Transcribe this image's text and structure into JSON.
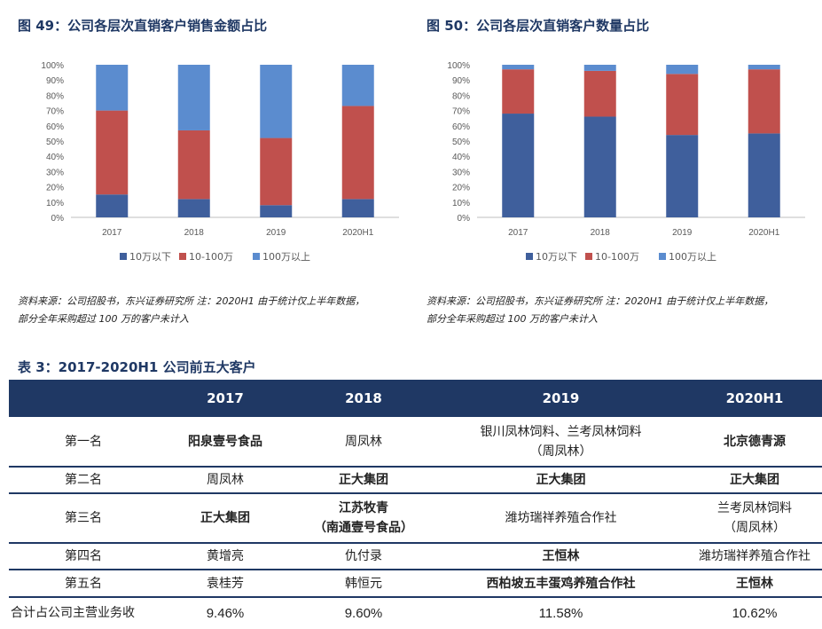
{
  "fig49": {
    "title": "图 49：公司各层次直销客户销售金额占比",
    "note_line1": "资料来源：公司招股书，东兴证券研究所 注：2020H1 由于统计仅上半年数据，",
    "note_line2": "部分全年采购超过 100 万的客户未计入"
  },
  "fig50": {
    "title": "图 50：公司各层次直销客户数量占比",
    "note_line1": "资料来源：公司招股书，东兴证券研究所 注：2020H1 由于统计仅上半年数据，",
    "note_line2": "部分全年采购超过 100 万的客户未计入"
  },
  "chart_data": [
    {
      "type": "bar",
      "stacked": true,
      "categories": [
        "2017",
        "2018",
        "2019",
        "2020H1"
      ],
      "series": [
        {
          "name": "10万以下",
          "values": [
            15,
            12,
            8,
            12
          ],
          "color": "#3f5f9c"
        },
        {
          "name": "10-100万",
          "values": [
            55,
            45,
            44,
            61
          ],
          "color": "#c0504d"
        },
        {
          "name": "100万以上",
          "values": [
            30,
            43,
            48,
            27
          ],
          "color": "#5b8ccf"
        }
      ],
      "ylim": [
        0,
        100
      ],
      "yticks": [
        "0%",
        "10%",
        "20%",
        "30%",
        "40%",
        "50%",
        "60%",
        "70%",
        "80%",
        "90%",
        "100%"
      ],
      "legend": "bottom"
    },
    {
      "type": "bar",
      "stacked": true,
      "categories": [
        "2017",
        "2018",
        "2019",
        "2020H1"
      ],
      "series": [
        {
          "name": "10万以下",
          "values": [
            68,
            66,
            54,
            55
          ],
          "color": "#3f5f9c"
        },
        {
          "name": "10-100万",
          "values": [
            29,
            30,
            40,
            42
          ],
          "color": "#c0504d"
        },
        {
          "name": "100万以上",
          "values": [
            3,
            4,
            6,
            3
          ],
          "color": "#5b8ccf"
        }
      ],
      "ylim": [
        0,
        100
      ],
      "yticks": [
        "0%",
        "10%",
        "20%",
        "30%",
        "40%",
        "50%",
        "60%",
        "70%",
        "80%",
        "90%",
        "100%"
      ],
      "legend": "bottom"
    }
  ],
  "table": {
    "title": "表 3：2017-2020H1 公司前五大客户",
    "headers": [
      "",
      "2017",
      "2018",
      "2019",
      "2020H1"
    ],
    "rows": [
      {
        "label": "第一名",
        "c2017": "阳泉壹号食品",
        "c2018": "周凤林",
        "c2019a": "银川凤林饲料、兰考凤林饲料",
        "c2019b": "（周凤林）",
        "c2020": "北京德青源"
      },
      {
        "label": "第二名",
        "c2017": "周凤林",
        "c2018": "正大集团",
        "c2019": "正大集团",
        "c2020": "正大集团"
      },
      {
        "label": "第三名",
        "c2017": "正大集团",
        "c2018a": "江苏牧青",
        "c2018b": "（南通壹号食品）",
        "c2019": "潍坊瑞祥养殖合作社",
        "c2020a": "兰考凤林饲料",
        "c2020b": "（周凤林）"
      },
      {
        "label": "第四名",
        "c2017": "黄增亮",
        "c2018": "仇付录",
        "c2019": "王恒林",
        "c2020": "潍坊瑞祥养殖合作社"
      },
      {
        "label": "第五名",
        "c2017": "袁桂芳",
        "c2018": "韩恒元",
        "c2019": "西柏坡五丰蛋鸡养殖合作社",
        "c2020": "王恒林"
      },
      {
        "label": "合计占公司主营业务收",
        "c2017": "9.46%",
        "c2018": "9.60%",
        "c2019": "11.58%",
        "c2020": "10.62%"
      }
    ]
  }
}
